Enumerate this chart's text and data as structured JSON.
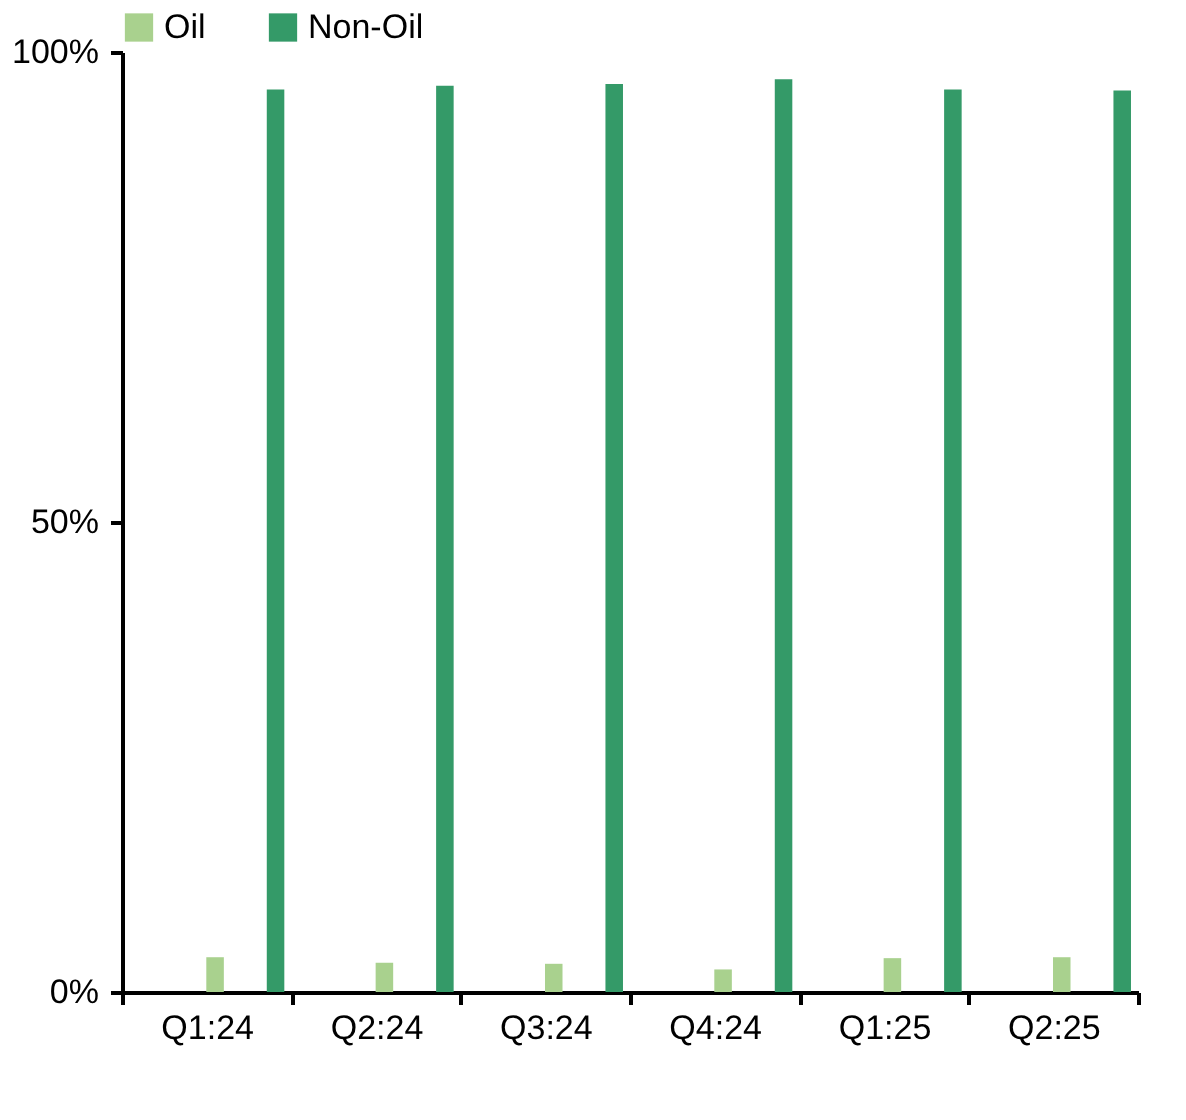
{
  "chart_data": {
    "type": "bar",
    "categories": [
      "Q1:24",
      "Q2:24",
      "Q3:24",
      "Q4:24",
      "Q1:25",
      "Q2:25"
    ],
    "series": [
      {
        "name": "Oil",
        "color": "#a9d18e",
        "values": [
          3.7,
          3.1,
          3.0,
          2.4,
          3.6,
          3.7
        ]
      },
      {
        "name": "Non-Oil",
        "color": "#349a68",
        "values": [
          96.0,
          96.4,
          96.6,
          97.1,
          96.0,
          95.9
        ]
      }
    ],
    "ylim": [
      0,
      100
    ],
    "yticks": [
      {
        "value": 0,
        "label": "0%"
      },
      {
        "value": 50,
        "label": "50%"
      },
      {
        "value": 100,
        "label": "100%"
      }
    ],
    "grid": false,
    "legend": "top"
  }
}
